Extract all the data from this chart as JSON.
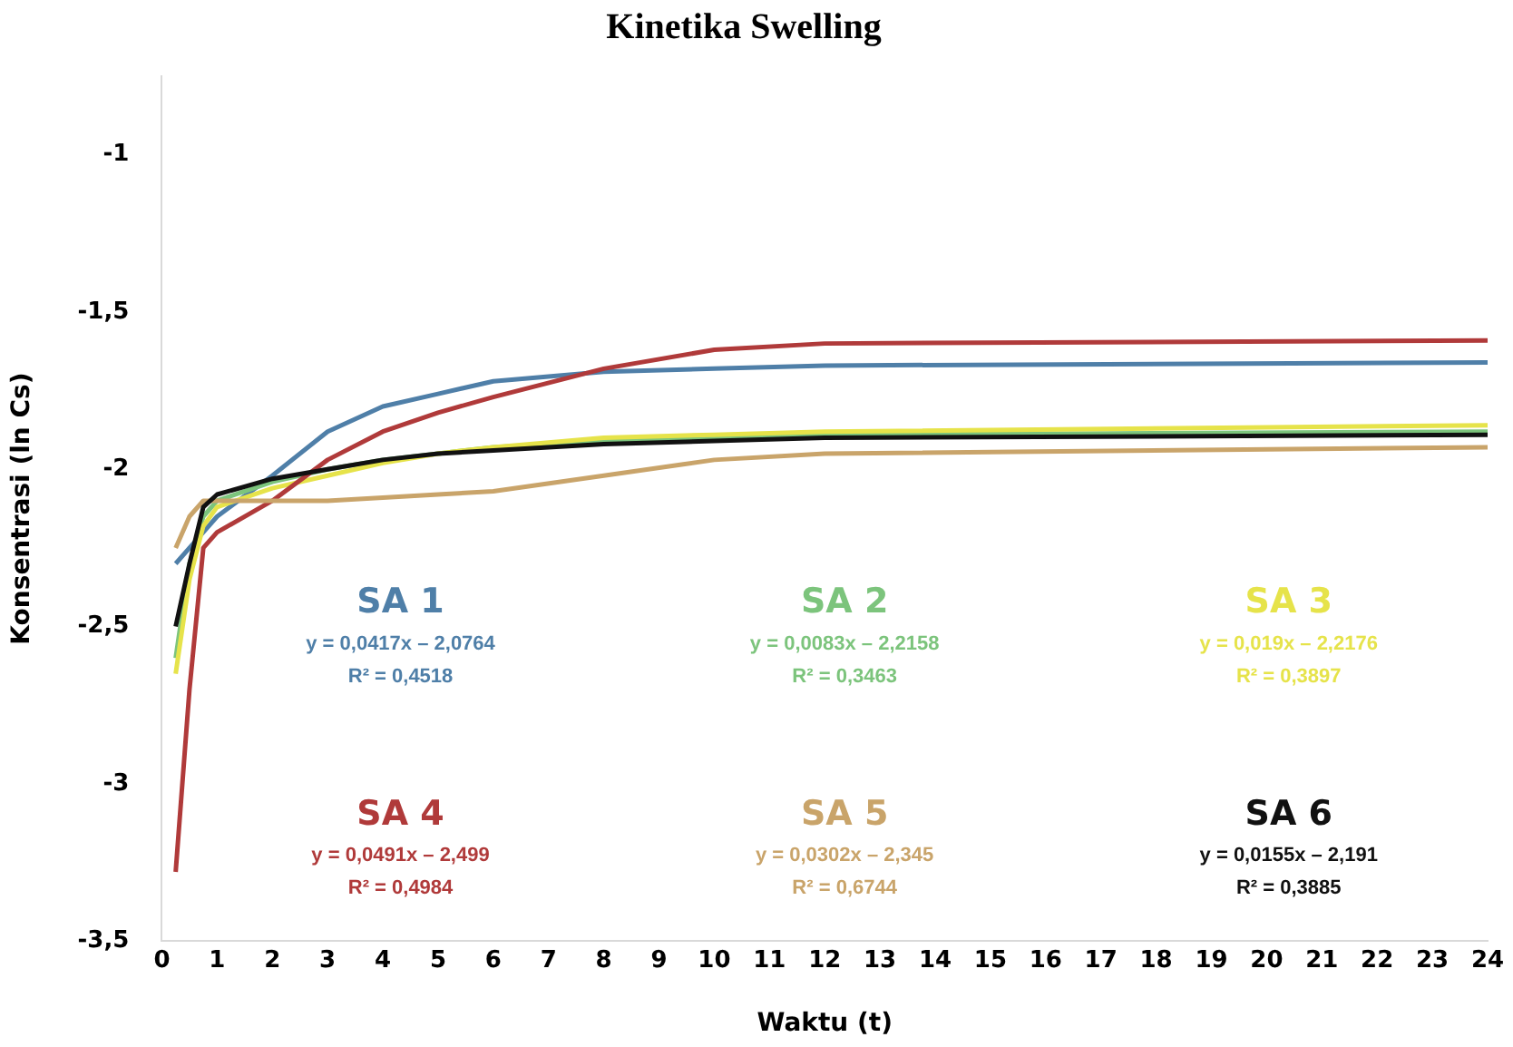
{
  "chart_data": {
    "type": "line",
    "title": "Kinetika Swelling",
    "xlabel": "Waktu (t)",
    "ylabel": "Konsentrasi (ln Cs)",
    "xlim": [
      0,
      24
    ],
    "xticks": [
      0,
      1,
      2,
      3,
      4,
      5,
      6,
      7,
      8,
      9,
      10,
      11,
      12,
      13,
      14,
      15,
      16,
      17,
      18,
      19,
      20,
      21,
      22,
      23,
      24
    ],
    "ylim": [
      -3.5,
      -0.75
    ],
    "yticks": [
      {
        "value": -1,
        "label": "-1"
      },
      {
        "value": -1.5,
        "label": "-1,5"
      },
      {
        "value": -2,
        "label": "-2"
      },
      {
        "value": -2.5,
        "label": "-2,5"
      },
      {
        "value": -3,
        "label": "-3"
      },
      {
        "value": -3.5,
        "label": "-3,5"
      }
    ],
    "grid": false,
    "legend": false,
    "marker": "none",
    "line_style": "solid",
    "x": [
      0.25,
      0.5,
      0.75,
      1,
      2,
      3,
      4,
      5,
      6,
      8,
      10,
      12,
      24
    ],
    "series": [
      {
        "name": "SA 1",
        "color": "#4f7fa8",
        "values": [
          -2.3,
          -2.25,
          -2.2,
          -2.15,
          -2.02,
          -1.88,
          -1.8,
          -1.76,
          -1.72,
          -1.69,
          -1.68,
          -1.67,
          -1.66
        ]
      },
      {
        "name": "SA 2",
        "color": "#7cc47c",
        "values": [
          -2.6,
          -2.3,
          -2.15,
          -2.1,
          -2.04,
          -2.0,
          -1.97,
          -1.95,
          -1.93,
          -1.91,
          -1.9,
          -1.89,
          -1.88
        ]
      },
      {
        "name": "SA 3",
        "color": "#e6e34a",
        "values": [
          -2.65,
          -2.35,
          -2.18,
          -2.12,
          -2.06,
          -2.02,
          -1.98,
          -1.95,
          -1.93,
          -1.9,
          -1.89,
          -1.88,
          -1.86
        ]
      },
      {
        "name": "SA 4",
        "color": "#b03a3a",
        "values": [
          -3.28,
          -2.7,
          -2.25,
          -2.2,
          -2.1,
          -1.97,
          -1.88,
          -1.82,
          -1.77,
          -1.68,
          -1.62,
          -1.6,
          -1.59
        ]
      },
      {
        "name": "SA 5",
        "color": "#c9a46a",
        "values": [
          -2.25,
          -2.15,
          -2.1,
          -2.1,
          -2.1,
          -2.1,
          -2.09,
          -2.08,
          -2.07,
          -2.02,
          -1.97,
          -1.95,
          -1.93
        ]
      },
      {
        "name": "SA 6",
        "color": "#111111",
        "values": [
          -2.5,
          -2.3,
          -2.12,
          -2.08,
          -2.03,
          -2.0,
          -1.97,
          -1.95,
          -1.94,
          -1.92,
          -1.91,
          -1.9,
          -1.89
        ]
      }
    ],
    "annotations": [
      "y = 0,0417x – 2,0764",
      "R² = 0,4518",
      "y = 0,0083x – 2,2158",
      "R² = 0,3463",
      "y = 0,019x – 2,2176",
      "R² = 0,3897",
      "y = 0,0491x – 2,499",
      "R² = 0,4984",
      "y = 0,0302x – 2,345",
      "R² = 0,6744",
      "y = 0,0155x – 2,191",
      "R² = 0,3885"
    ]
  }
}
